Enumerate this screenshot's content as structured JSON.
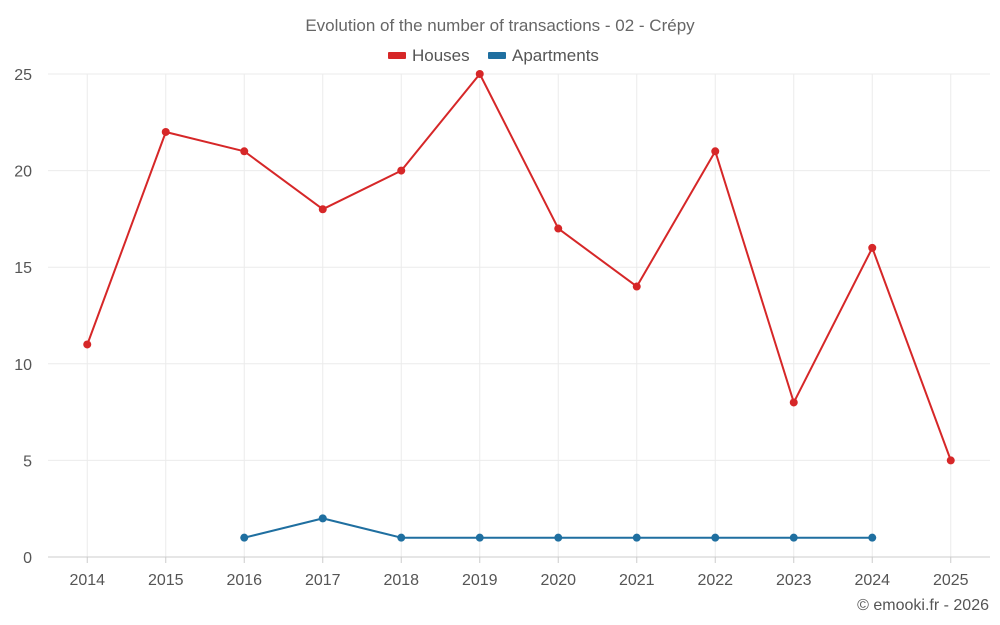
{
  "chart_data": {
    "type": "line",
    "title": "Evolution of the number of transactions - 02 - Crépy",
    "xlabel": "",
    "ylabel": "",
    "categories": [
      "2014",
      "2015",
      "2016",
      "2017",
      "2018",
      "2019",
      "2020",
      "2021",
      "2022",
      "2023",
      "2024",
      "2025"
    ],
    "ylim": [
      0,
      25
    ],
    "yticks": [
      0,
      5,
      10,
      15,
      20,
      25
    ],
    "grid": true,
    "legend_position": "top-center",
    "series": [
      {
        "name": "Houses",
        "color": "#d62728",
        "values": [
          11,
          22,
          21,
          18,
          20,
          25,
          17,
          14,
          21,
          8,
          16,
          5
        ]
      },
      {
        "name": "Apartments",
        "color": "#1f6fa0",
        "values": [
          null,
          null,
          1,
          2,
          1,
          1,
          1,
          1,
          1,
          1,
          1,
          null
        ]
      }
    ]
  },
  "credit": "© emooki.fr - 2026"
}
